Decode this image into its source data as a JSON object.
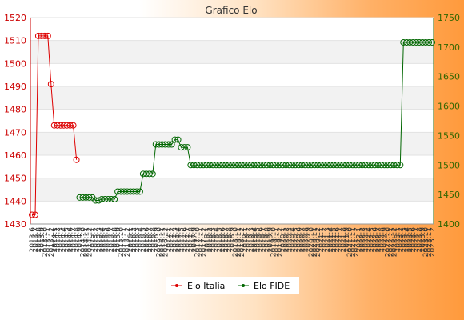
{
  "chart_data": {
    "type": "line",
    "title": "Grafico Elo",
    "y_left": {
      "min": 1430,
      "max": 1520,
      "step": 10,
      "color": "#cc0000"
    },
    "y_right": {
      "min": 1400,
      "max": 1750,
      "step": 50,
      "color": "#336600"
    },
    "x_labels": [
      "2013.6",
      "2013.7",
      "2013.8",
      "2013.9",
      "2013.10",
      "2013.11",
      "2013.12",
      "2014.1",
      "2014.2",
      "2014.3",
      "2014.4",
      "2014.5",
      "2014.6",
      "2014.7",
      "2014.8",
      "2014.9",
      "2014.10",
      "2014.11",
      "2014.12",
      "2015.1",
      "2015.2",
      "2015.3",
      "2015.4",
      "2015.5",
      "2015.6",
      "2015.7",
      "2015.8",
      "2015.9",
      "2015.10",
      "2015.11",
      "2015.12",
      "2016.1",
      "2016.2",
      "2016.3",
      "2016.4",
      "2016.5",
      "2016.6",
      "2016.7",
      "2016.8",
      "2016.9",
      "2016.10",
      "2016.11",
      "2016.12",
      "2017.1",
      "2017.2",
      "2017.3",
      "2017.4",
      "2017.5",
      "2017.6",
      "2017.7",
      "2017.8",
      "2017.9",
      "2017.10",
      "2017.11",
      "2017.12",
      "2018.1",
      "2018.2",
      "2018.3",
      "2018.4",
      "2018.5",
      "2018.6",
      "2018.7",
      "2018.8",
      "2018.9",
      "2018.10",
      "2018.11",
      "2018.12",
      "2019.1",
      "2019.2",
      "2019.3",
      "2019.4",
      "2019.5",
      "2019.6",
      "2019.7",
      "2019.8",
      "2019.9",
      "2019.10",
      "2019.11",
      "2019.12",
      "2020.1",
      "2020.2",
      "2020.3",
      "2020.4",
      "2020.5",
      "2020.6",
      "2020.7",
      "2020.8",
      "2020.9",
      "2020.10",
      "2020.11",
      "2020.12",
      "2021.1",
      "2021.2",
      "2021.3",
      "2021.4",
      "2021.5",
      "2021.6",
      "2021.7",
      "2021.8",
      "2021.9",
      "2021.10",
      "2021.11",
      "2021.12",
      "2022.1",
      "2022.2",
      "2022.3",
      "2022.4",
      "2022.5",
      "2022.6",
      "2022.7",
      "2022.8",
      "2022.9",
      "2022.10",
      "2022.11",
      "2022.12",
      "2023.1",
      "2023.2",
      "2023.3",
      "2023.4",
      "2023.5",
      "2023.6",
      "2023.7",
      "2023.8",
      "2023.9",
      "2023.10",
      "2023.11",
      "2023.12"
    ],
    "series": [
      {
        "name": "Elo Italia",
        "axis": "left",
        "color": "#dd0000",
        "points": [
          [
            "2013.6",
            1434
          ],
          [
            "2013.7",
            1434
          ],
          [
            "2013.8",
            1512
          ],
          [
            "2013.9",
            1512
          ],
          [
            "2013.10",
            1512
          ],
          [
            "2013.11",
            1512
          ],
          [
            "2013.12",
            1491
          ],
          [
            "2014.1",
            1473
          ],
          [
            "2014.2",
            1473
          ],
          [
            "2014.3",
            1473
          ],
          [
            "2014.4",
            1473
          ],
          [
            "2014.5",
            1473
          ],
          [
            "2014.6",
            1473
          ],
          [
            "2014.7",
            1473
          ],
          [
            "2014.8",
            1458
          ]
        ]
      },
      {
        "name": "Elo FIDE",
        "axis": "right",
        "color": "#006600",
        "points": [
          [
            "2014.9",
            1445
          ],
          [
            "2014.10",
            1445
          ],
          [
            "2014.11",
            1445
          ],
          [
            "2014.12",
            1445
          ],
          [
            "2015.1",
            1445
          ],
          [
            "2015.2",
            1440
          ],
          [
            "2015.3",
            1440
          ],
          [
            "2015.4",
            1442
          ],
          [
            "2015.5",
            1442
          ],
          [
            "2015.6",
            1442
          ],
          [
            "2015.7",
            1442
          ],
          [
            "2015.8",
            1442
          ],
          [
            "2015.9",
            1455
          ],
          [
            "2015.10",
            1455
          ],
          [
            "2015.11",
            1455
          ],
          [
            "2015.12",
            1455
          ],
          [
            "2016.1",
            1455
          ],
          [
            "2016.2",
            1455
          ],
          [
            "2016.3",
            1455
          ],
          [
            "2016.4",
            1455
          ],
          [
            "2016.5",
            1485
          ],
          [
            "2016.6",
            1485
          ],
          [
            "2016.7",
            1485
          ],
          [
            "2016.8",
            1485
          ],
          [
            "2016.9",
            1535
          ],
          [
            "2016.10",
            1535
          ],
          [
            "2016.11",
            1535
          ],
          [
            "2016.12",
            1535
          ],
          [
            "2017.1",
            1535
          ],
          [
            "2017.2",
            1535
          ],
          [
            "2017.3",
            1543
          ],
          [
            "2017.4",
            1543
          ],
          [
            "2017.5",
            1530
          ],
          [
            "2017.6",
            1530
          ],
          [
            "2017.7",
            1530
          ],
          [
            "2017.8",
            1500
          ],
          [
            "2017.9",
            1500
          ],
          [
            "2017.10",
            1500
          ],
          [
            "2017.11",
            1500
          ],
          [
            "2017.12",
            1500
          ],
          [
            "2018.1",
            1500
          ],
          [
            "2018.2",
            1500
          ],
          [
            "2018.3",
            1500
          ],
          [
            "2018.4",
            1500
          ],
          [
            "2018.5",
            1500
          ],
          [
            "2018.6",
            1500
          ],
          [
            "2018.7",
            1500
          ],
          [
            "2018.8",
            1500
          ],
          [
            "2018.9",
            1500
          ],
          [
            "2018.10",
            1500
          ],
          [
            "2018.11",
            1500
          ],
          [
            "2018.12",
            1500
          ],
          [
            "2019.1",
            1500
          ],
          [
            "2019.2",
            1500
          ],
          [
            "2019.3",
            1500
          ],
          [
            "2019.4",
            1500
          ],
          [
            "2019.5",
            1500
          ],
          [
            "2019.6",
            1500
          ],
          [
            "2019.7",
            1500
          ],
          [
            "2019.8",
            1500
          ],
          [
            "2019.9",
            1500
          ],
          [
            "2019.10",
            1500
          ],
          [
            "2019.11",
            1500
          ],
          [
            "2019.12",
            1500
          ],
          [
            "2020.1",
            1500
          ],
          [
            "2020.2",
            1500
          ],
          [
            "2020.3",
            1500
          ],
          [
            "2020.4",
            1500
          ],
          [
            "2020.5",
            1500
          ],
          [
            "2020.6",
            1500
          ],
          [
            "2020.7",
            1500
          ],
          [
            "2020.8",
            1500
          ],
          [
            "2020.9",
            1500
          ],
          [
            "2020.10",
            1500
          ],
          [
            "2020.11",
            1500
          ],
          [
            "2020.12",
            1500
          ],
          [
            "2021.1",
            1500
          ],
          [
            "2021.2",
            1500
          ],
          [
            "2021.3",
            1500
          ],
          [
            "2021.4",
            1500
          ],
          [
            "2021.5",
            1500
          ],
          [
            "2021.6",
            1500
          ],
          [
            "2021.7",
            1500
          ],
          [
            "2021.8",
            1500
          ],
          [
            "2021.9",
            1500
          ],
          [
            "2021.10",
            1500
          ],
          [
            "2021.11",
            1500
          ],
          [
            "2021.12",
            1500
          ],
          [
            "2022.1",
            1500
          ],
          [
            "2022.2",
            1500
          ],
          [
            "2022.3",
            1500
          ],
          [
            "2022.4",
            1500
          ],
          [
            "2022.5",
            1500
          ],
          [
            "2022.6",
            1500
          ],
          [
            "2022.7",
            1500
          ],
          [
            "2022.8",
            1500
          ],
          [
            "2022.9",
            1500
          ],
          [
            "2022.10",
            1500
          ],
          [
            "2022.11",
            1500
          ],
          [
            "2022.12",
            1500
          ],
          [
            "2023.1",
            1500
          ],
          [
            "2023.2",
            1500
          ],
          [
            "2023.3",
            1708
          ],
          [
            "2023.4",
            1708
          ],
          [
            "2023.5",
            1708
          ],
          [
            "2023.6",
            1708
          ],
          [
            "2023.7",
            1708
          ],
          [
            "2023.8",
            1708
          ],
          [
            "2023.9",
            1708
          ],
          [
            "2023.10",
            1708
          ],
          [
            "2023.11",
            1708
          ],
          [
            "2023.12",
            1708
          ]
        ]
      }
    ],
    "grid": true,
    "legend": "bottom"
  }
}
